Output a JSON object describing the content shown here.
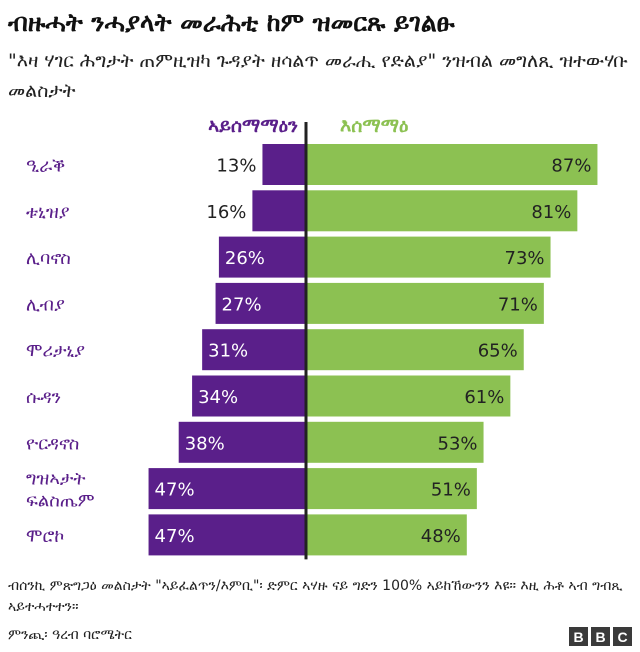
{
  "title": "ብዙሓት ንሓያላት መራሕቲ ከም ዝመርጹ ይገልፁ",
  "subtitle": "\"እዛ ሃገር ሕግታት ጠምዚዝካ ጉዳያት ዘሳልጥ መራሒ የድልያ\" ንዝብል መግለጺ ዝተውሃቡ መልስታት",
  "chart_data": {
    "type": "bar",
    "orientation": "diverging-horizontal",
    "unit": "%",
    "categories": [
      [
        "ዒራቕ"
      ],
      [
        "ቱኒዝያ"
      ],
      [
        "ሊባኖስ"
      ],
      [
        "ሊብያ"
      ],
      [
        "ሞሪታኒያ"
      ],
      [
        "ሱዳን"
      ],
      [
        "ዮርዳኖስ"
      ],
      [
        "ግዝኣታት",
        "ፍልስጤም"
      ],
      [
        "ሞሮኮ"
      ]
    ],
    "series": [
      {
        "name": "ኣይሰማማዕን",
        "color": "#5a1f8a",
        "direction": "left",
        "values": [
          13,
          16,
          26,
          27,
          31,
          34,
          38,
          47,
          47
        ]
      },
      {
        "name": "እሰማማዕ",
        "color": "#8cc152",
        "direction": "right",
        "values": [
          87,
          81,
          73,
          71,
          65,
          61,
          53,
          51,
          48
        ]
      }
    ],
    "xlim": [
      0,
      100
    ],
    "grid": false,
    "legend": "top",
    "baseline_color": "#222222",
    "category_label_color": "#5a1f8a",
    "value_label_dark_color": "#222222",
    "value_label_light_color": "#ffffff"
  },
  "footnote": "ብሰንኪ ምጽግጋዕ መልስታት \"ኣይፈልጥን/እምቢ\"፡ ድምር ኣሃዙ ናይ ግድን 100% ኣይከኸውንን እዩ። እዚ ሕቶ ኣብ ግብጺ ኣይተሓተተን።",
  "source": "ምንጪ፡ ዓረብ ባሮሜትር",
  "logo_letters": [
    "B",
    "B",
    "C"
  ]
}
